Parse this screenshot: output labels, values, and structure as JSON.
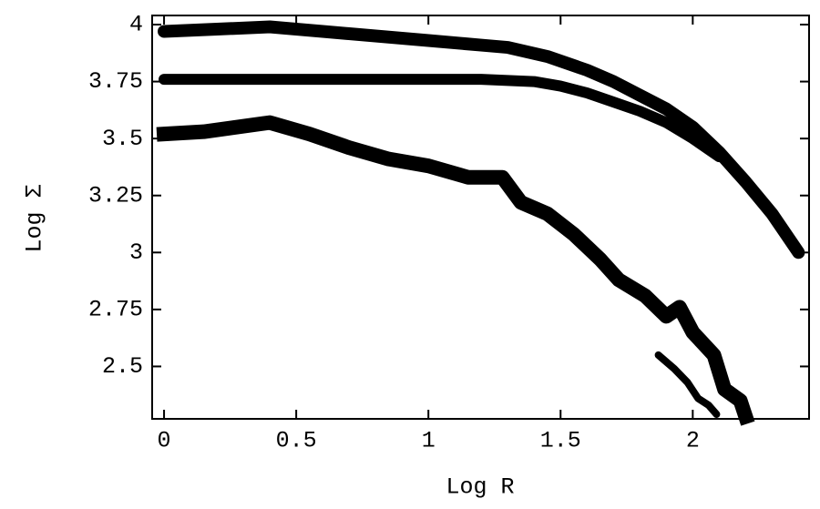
{
  "chart_data": {
    "type": "scatter",
    "xlabel": "Log R",
    "ylabel": "Log Σ",
    "xlim": [
      -0.045,
      2.44
    ],
    "ylim": [
      2.27,
      4.04
    ],
    "xticks": [
      0,
      0.5,
      1,
      1.5,
      2
    ],
    "yticks": [
      2.5,
      2.75,
      3,
      3.25,
      3.5,
      3.75,
      4
    ],
    "series": [
      {
        "color": "#000000",
        "marker": "circle",
        "x": [
          0,
          0.2,
          0.4,
          0.6,
          0.8,
          1.0,
          1.2,
          1.3,
          1.45,
          1.6,
          1.7,
          1.8,
          1.9,
          2.0,
          2.1,
          2.2,
          2.3,
          2.4
        ],
        "values": [
          3.97,
          3.98,
          3.99,
          3.97,
          3.95,
          3.93,
          3.91,
          3.9,
          3.86,
          3.8,
          3.75,
          3.69,
          3.63,
          3.55,
          3.44,
          3.31,
          3.17,
          3.0
        ]
      },
      {
        "color": "#000000",
        "marker": "plus",
        "x": [
          0,
          0.2,
          0.4,
          0.6,
          0.8,
          1.0,
          1.2,
          1.4,
          1.5,
          1.6,
          1.7,
          1.8,
          1.9,
          2.0,
          2.1
        ],
        "values": [
          3.76,
          3.76,
          3.76,
          3.76,
          3.76,
          3.76,
          3.76,
          3.75,
          3.73,
          3.7,
          3.66,
          3.62,
          3.57,
          3.5,
          3.42
        ]
      },
      {
        "color": "#000000",
        "marker": "square",
        "x": [
          0,
          0.15,
          0.4,
          0.55,
          0.7,
          0.85,
          1.0,
          1.15,
          1.28,
          1.35,
          1.45,
          1.55,
          1.65,
          1.72,
          1.82,
          1.9,
          1.95,
          2.0,
          2.08,
          2.12,
          2.18,
          2.2
        ],
        "values": [
          3.52,
          3.53,
          3.57,
          3.52,
          3.46,
          3.41,
          3.38,
          3.33,
          3.33,
          3.22,
          3.17,
          3.08,
          2.97,
          2.88,
          2.81,
          2.72,
          2.76,
          2.65,
          2.55,
          2.4,
          2.35,
          2.28
        ]
      },
      {
        "color": "#000000",
        "marker": "triangle",
        "x": [
          1.87,
          1.93,
          1.98,
          2.02,
          2.06,
          2.09
        ],
        "values": [
          2.55,
          2.49,
          2.43,
          2.36,
          2.33,
          2.29
        ]
      }
    ]
  }
}
